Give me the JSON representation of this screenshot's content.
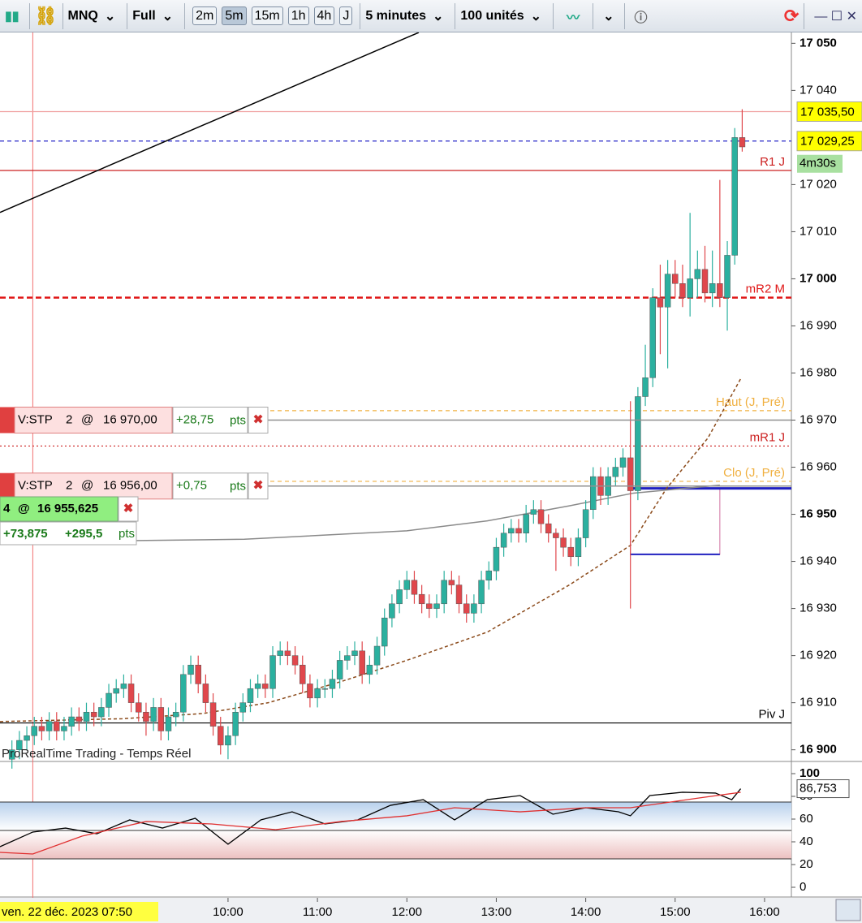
{
  "toolbar": {
    "symbol": "MNQ",
    "mode": "Full",
    "timeframes": [
      "2m",
      "5m",
      "15m",
      "1h",
      "4h",
      "J"
    ],
    "active": "5m",
    "interval": "5 minutes",
    "units": "100 unités"
  },
  "chart_data": {
    "type": "candlestick",
    "up_color": "#2bb09f",
    "down_color": "#e0474c",
    "x": [
      455,
      460,
      465,
      470,
      475,
      480,
      485,
      490,
      495,
      500,
      505,
      510,
      515,
      520,
      525,
      530,
      535,
      540,
      545,
      550,
      555,
      560,
      565,
      570,
      575,
      580,
      585,
      590,
      595,
      600,
      605,
      610,
      615,
      620,
      625,
      630,
      635,
      640,
      645,
      650,
      655,
      660,
      665,
      670,
      675,
      680,
      685,
      690,
      695,
      700,
      705,
      710,
      715,
      720,
      725,
      730,
      735,
      740,
      745,
      750,
      755,
      760,
      765,
      770,
      775,
      780,
      785,
      790,
      795,
      800,
      805,
      810,
      815,
      820,
      825,
      830,
      835,
      840,
      845,
      850,
      855,
      860,
      865,
      870,
      875,
      880,
      885,
      890,
      895,
      900,
      905,
      910,
      915,
      920,
      925,
      930,
      935,
      940,
      945
    ],
    "open": [
      16898,
      16900,
      16902,
      16903,
      16905,
      16904,
      16906,
      16904,
      16905,
      16907,
      16906,
      16908,
      16907,
      16909,
      16912,
      16913,
      16914,
      16910,
      16908,
      16906,
      16909,
      16904,
      16907,
      16908,
      16916,
      16918,
      16914,
      16910,
      16905,
      16901,
      16903,
      16908,
      16910,
      16913,
      16914,
      16913,
      16920,
      16921,
      16920,
      16918,
      16914,
      16911,
      16913,
      16913,
      16915,
      16919,
      16920,
      16921,
      16916,
      16918,
      16922,
      16928,
      16931,
      16934,
      16936,
      16933,
      16931,
      16930,
      16931,
      16936,
      16935,
      16931,
      16929,
      16931,
      16936,
      16938,
      16943,
      16946,
      16947,
      16946,
      16950,
      16951,
      16948,
      16946,
      16945,
      16943,
      16941,
      16945,
      16951,
      16958,
      16954,
      16958,
      16960,
      16962,
      16955,
      16975,
      16979,
      16996,
      16994,
      17001,
      16999,
      16996,
      17000,
      17002,
      16997,
      16999,
      16996,
      17005,
      17030
    ],
    "high": [
      16902,
      16904,
      16905,
      16907,
      16907,
      16908,
      16908,
      16907,
      16909,
      16909,
      16910,
      16910,
      16911,
      16914,
      16915,
      16916,
      16916,
      16912,
      16910,
      16911,
      16911,
      16909,
      16910,
      16918,
      16920,
      16920,
      16916,
      16912,
      16907,
      16905,
      16910,
      16912,
      16915,
      16916,
      16916,
      16922,
      16923,
      16923,
      16922,
      16920,
      16916,
      16915,
      16915,
      16917,
      16921,
      16922,
      16923,
      16923,
      16920,
      16924,
      16930,
      16933,
      16936,
      16938,
      16938,
      16935,
      16933,
      16933,
      16938,
      16938,
      16937,
      16933,
      16933,
      16938,
      16940,
      16945,
      16948,
      16949,
      16949,
      16952,
      16953,
      16953,
      16950,
      16947,
      16947,
      16945,
      16947,
      16953,
      16960,
      16960,
      16960,
      16962,
      16964,
      16974,
      16977,
      16986,
      16998,
      17003,
      17004,
      17004,
      17003,
      17014,
      17006,
      17007,
      17006,
      17021,
      17008,
      17032,
      17036
    ],
    "low": [
      16896,
      16898,
      16900,
      16901,
      16902,
      16902,
      16902,
      16902,
      16903,
      16904,
      16904,
      16905,
      16905,
      16907,
      16910,
      16911,
      16908,
      16906,
      16903,
      16904,
      16902,
      16902,
      16905,
      16906,
      16914,
      16912,
      16908,
      16903,
      16899,
      16898,
      16901,
      16906,
      16908,
      16911,
      16911,
      16911,
      16918,
      16918,
      16916,
      16912,
      16909,
      16909,
      16911,
      16911,
      16913,
      16917,
      16918,
      16914,
      16914,
      16916,
      16920,
      16926,
      16929,
      16932,
      16931,
      16929,
      16928,
      16928,
      16929,
      16933,
      16929,
      16927,
      16927,
      16929,
      16934,
      16936,
      16941,
      16944,
      16944,
      16944,
      16948,
      16946,
      16944,
      16938,
      16941,
      16939,
      16939,
      16943,
      16949,
      16952,
      16952,
      16956,
      16958,
      16930,
      16953,
      16973,
      16977,
      16984,
      16981,
      16996,
      16994,
      16992,
      16996,
      16995,
      16994,
      16994,
      16989,
      17003,
      17027
    ],
    "close": [
      16900,
      16902,
      16903,
      16905,
      16904,
      16906,
      16904,
      16905,
      16907,
      16906,
      16908,
      16907,
      16909,
      16912,
      16913,
      16914,
      16910,
      16908,
      16906,
      16909,
      16904,
      16907,
      16908,
      16916,
      16918,
      16914,
      16910,
      16905,
      16901,
      16903,
      16908,
      16910,
      16913,
      16914,
      16913,
      16920,
      16921,
      16920,
      16918,
      16914,
      16911,
      16913,
      16913,
      16915,
      16919,
      16920,
      16921,
      16916,
      16918,
      16922,
      16928,
      16931,
      16934,
      16936,
      16933,
      16931,
      16930,
      16931,
      16936,
      16935,
      16931,
      16929,
      16931,
      16936,
      16938,
      16943,
      16946,
      16947,
      16946,
      16950,
      16951,
      16948,
      16946,
      16945,
      16943,
      16941,
      16945,
      16951,
      16958,
      16954,
      16958,
      16960,
      16962,
      16955,
      16975,
      16979,
      16996,
      16994,
      17001,
      16999,
      16996,
      17000,
      17002,
      16997,
      16999,
      16996,
      17005,
      17030,
      17028
    ],
    "xlim": [
      447,
      978
    ],
    "ylim": [
      16897.7,
      17052.3
    ],
    "xticks": [
      {
        "value": 600,
        "label": "10:00"
      },
      {
        "value": 660,
        "label": "11:00"
      },
      {
        "value": 720,
        "label": "12:00"
      },
      {
        "value": 780,
        "label": "13:00"
      },
      {
        "value": 840,
        "label": "14:00"
      },
      {
        "value": 900,
        "label": "15:00"
      },
      {
        "value": 960,
        "label": "16:00"
      }
    ],
    "yticks": [
      {
        "value": 17050,
        "label": "17 050"
      },
      {
        "value": 17040,
        "label": "17 040"
      },
      {
        "value": 17020,
        "label": "17 020"
      },
      {
        "value": 17010,
        "label": "17 010"
      },
      {
        "value": 17000,
        "label": "17 000"
      },
      {
        "value": 16990,
        "label": "16 990"
      },
      {
        "value": 16980,
        "label": "16 980"
      },
      {
        "value": 16970,
        "label": "16 970"
      },
      {
        "value": 16960,
        "label": "16 960"
      },
      {
        "value": 16950,
        "label": "16 950"
      },
      {
        "value": 16940,
        "label": "16 940"
      },
      {
        "value": 16930,
        "label": "16 930"
      },
      {
        "value": 16920,
        "label": "16 920"
      },
      {
        "value": 16910,
        "label": "16 910"
      },
      {
        "value": 16900,
        "label": "16 900"
      }
    ],
    "levels": [
      {
        "value": 17035.5,
        "color": "#f0a0a0",
        "dash": "none"
      },
      {
        "value": 17029.25,
        "color": "#2828c8",
        "dash": "5 4"
      },
      {
        "value": 17023,
        "label": "R1 J",
        "color": "#cc2020",
        "dash": "none"
      },
      {
        "value": 16996,
        "label": "mR2 M",
        "color": "#e01818",
        "dash": "7 4"
      },
      {
        "value": 16972,
        "label": "Haut (J, Pré)",
        "color": "#f0b040",
        "dash": "5 4"
      },
      {
        "value": 16964.5,
        "label": "mR1 J",
        "color": "#cc2020",
        "dash": "2 3"
      },
      {
        "value": 16957,
        "label": "Clo (J, Pré)",
        "color": "#f0b040",
        "dash": "5 4"
      },
      {
        "value": 16905.7,
        "label": "Piv J",
        "color": "#000000",
        "dash": "none"
      }
    ],
    "price_labels": [
      {
        "value": 17035.5,
        "label": "17 035,50",
        "color": "#ffff00"
      },
      {
        "value": 17029.25,
        "label": "17 029,25",
        "color": "#ffff00"
      }
    ],
    "timer": "4m30s",
    "overlays": [
      {
        "color": "#8b4a1a",
        "dash": "4 3",
        "x": [
          447,
          529,
          583,
          627,
          676,
          720,
          774,
          829,
          870,
          894,
          922,
          944
        ],
        "values": [
          16906,
          16906.6,
          16907.7,
          16910,
          16914.5,
          16919,
          16925,
          16935,
          16943.4,
          16955.4,
          16966.2,
          16978.8
        ]
      },
      {
        "color": "#8a8a8a",
        "dash": "none",
        "x": [
          447,
          611,
          720,
          774,
          829,
          872,
          930
        ],
        "values": [
          16944.1,
          16944.7,
          16946.5,
          16948.6,
          16951.8,
          16954.5,
          16956.2
        ]
      },
      {
        "color": "#000000",
        "dash": "none",
        "x": [
          447,
          728
        ],
        "values": [
          17014.1,
          17052.3
        ]
      }
    ],
    "box": {
      "x": [
        870,
        930
      ],
      "y": [
        16941.5,
        16955.5
      ]
    },
    "orders": [
      {
        "type": "V:STP",
        "qty": 2,
        "at": "@",
        "price": {
          "value": 16970,
          "label": "16 970,00"
        },
        "gain": "+28,75",
        "unit": "pts"
      },
      {
        "type": "V:STP",
        "qty": 2,
        "at": "@",
        "price": {
          "value": 16956,
          "label": "16 956,00"
        },
        "gain": "+0,75",
        "unit": "pts"
      }
    ],
    "position": {
      "qty": 4,
      "at": "@",
      "price": "16 955,625",
      "gain": "+73,875",
      "points": "+295,5",
      "unit": "pts"
    },
    "cursor_x": 469,
    "source": "ProRealTime Trading - Temps Réel",
    "date_label": "ven. 22 déc. 2023 07:50"
  },
  "indicator": {
    "ylim": [
      0,
      100
    ],
    "yticks": [
      100,
      80,
      60,
      40,
      20,
      0
    ],
    "bands": [
      75,
      50,
      25
    ],
    "value_label": {
      "value": 86.753,
      "label": "86,753"
    },
    "series": [
      {
        "color": "#000000",
        "x": [
          447,
          469,
          491,
          512,
          534,
          556,
          578,
          600,
          622,
          643,
          665,
          687,
          709,
          731,
          752,
          774,
          796,
          818,
          840,
          862,
          870,
          883,
          905,
          927,
          938,
          944
        ],
        "values": [
          35.7,
          48.6,
          52.1,
          47.1,
          59.3,
          52.1,
          60.7,
          37.9,
          59.3,
          66.4,
          55.7,
          59.3,
          72.1,
          77.1,
          59.3,
          77.1,
          80.7,
          64.3,
          70,
          66.4,
          62.9,
          80.7,
          83.6,
          82.9,
          77.1,
          86.753
        ]
      },
      {
        "color": "#e03030",
        "x": [
          447,
          469,
          502,
          545,
          589,
          632,
          676,
          720,
          752,
          796,
          840,
          870,
          916,
          944
        ],
        "values": [
          30.7,
          29.3,
          45,
          57.9,
          55.7,
          50.7,
          57.9,
          62.9,
          70,
          66.4,
          70,
          70,
          78.6,
          83.6
        ]
      }
    ]
  }
}
